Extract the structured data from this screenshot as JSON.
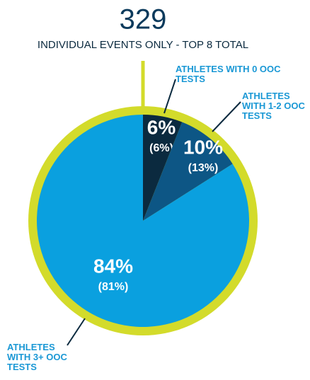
{
  "chart_data": {
    "type": "pie",
    "title": "329",
    "subtitle": "INDIVIDUAL EVENTS ONLY - TOP 8 TOTAL",
    "categories": [
      "ATHLETES WITH 0 OOC TESTS",
      "ATHLETES WITH 1-2 OOC TESTS",
      "ATHLETES WITH 3+ OOC TESTS"
    ],
    "values": [
      6,
      10,
      84
    ],
    "value_labels": [
      "6%",
      "10%",
      "84%"
    ],
    "previous_values": [
      6,
      13,
      81
    ],
    "previous_value_labels": [
      "(6%)",
      "(13%)",
      "(81%)"
    ],
    "colors": [
      "#0b2a3f",
      "#0d5685",
      "#0aa0df"
    ],
    "ring_color": "#d3db2b"
  }
}
